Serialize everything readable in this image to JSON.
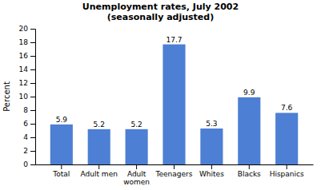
{
  "chart_data": {
    "type": "bar",
    "title": "Unemployment rates, July 2002\n(seasonally adjusted)",
    "categories": [
      "Total",
      "Adult men",
      "Adult\nwomen",
      "Teenagers",
      "Whites",
      "Blacks",
      "Hispanics"
    ],
    "values": [
      5.9,
      5.2,
      5.2,
      17.7,
      5.3,
      9.9,
      7.6
    ],
    "color": "#4d7fd4",
    "ylabel": "Percent",
    "ylim": [
      0,
      20
    ],
    "yticks": [
      0,
      2,
      4,
      6,
      8,
      10,
      12,
      14,
      16,
      18,
      20
    ],
    "grid": false,
    "data_labels": true
  }
}
